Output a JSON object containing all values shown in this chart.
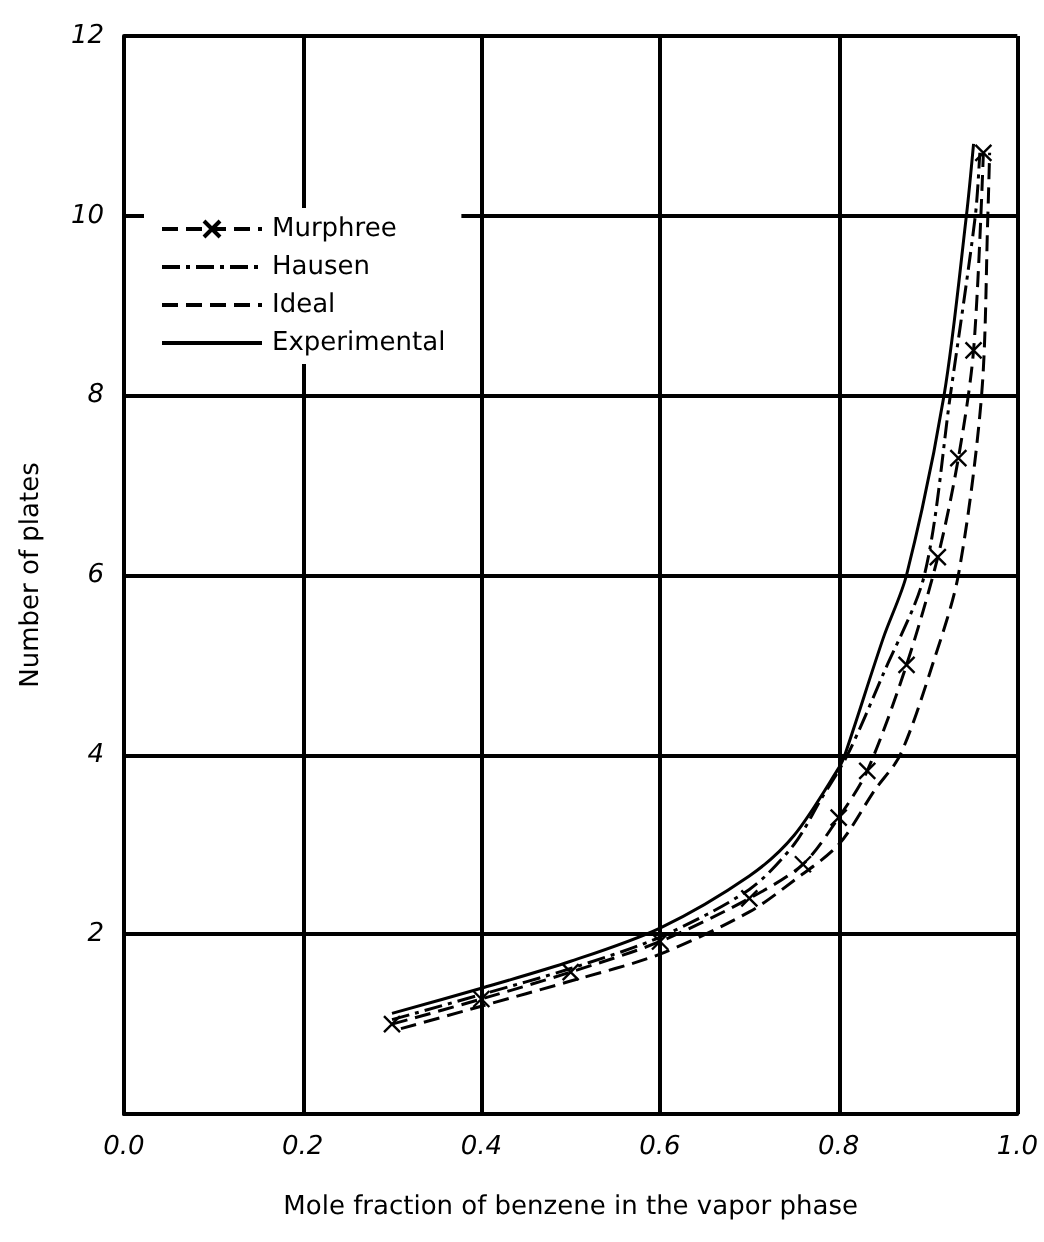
{
  "chart_data": {
    "type": "line",
    "xlabel": "Mole fraction of benzene in the vapor phase",
    "ylabel": "Number of plates",
    "xlim": [
      0,
      1
    ],
    "xticks": [
      {
        "value": 0,
        "label": "0.0"
      },
      {
        "value": 0.2,
        "label": "0.2"
      },
      {
        "value": 0.4,
        "label": "0.4"
      },
      {
        "value": 0.6,
        "label": "0.6"
      },
      {
        "value": 0.8,
        "label": "0.8"
      },
      {
        "value": 1,
        "label": "1.0"
      }
    ],
    "ylim": [
      0,
      12
    ],
    "yticks": [
      2,
      4,
      6,
      8,
      10,
      12
    ],
    "grid": true,
    "legend": "top left",
    "series": [
      {
        "name": "Murphree",
        "color": "#000000",
        "line_style": "dashed",
        "marker": "cross",
        "x": [
          0.3,
          0.4,
          0.5,
          0.6,
          0.7,
          0.76,
          0.8,
          0.832,
          0.876,
          0.911,
          0.934,
          0.951,
          0.962
        ],
        "values": [
          1.0,
          1.28,
          1.58,
          1.92,
          2.4,
          2.78,
          3.3,
          3.82,
          5.0,
          6.2,
          7.3,
          8.5,
          10.7
        ]
      },
      {
        "name": "Hausen",
        "color": "#000000",
        "line_style": "dashdot",
        "marker": "none",
        "x": [
          0.3,
          0.4,
          0.5,
          0.6,
          0.7,
          0.75,
          0.78,
          0.81,
          0.85,
          0.896,
          0.925,
          0.953,
          0.958
        ],
        "values": [
          1.05,
          1.33,
          1.62,
          1.97,
          2.5,
          3.0,
          3.5,
          4.0,
          4.9,
          6.0,
          8.0,
          10.0,
          10.7
        ]
      },
      {
        "name": "Ideal",
        "color": "#000000",
        "line_style": "dashed",
        "marker": "none",
        "x": [
          0.31,
          0.4,
          0.5,
          0.6,
          0.7,
          0.75,
          0.8,
          0.84,
          0.869,
          0.905,
          0.934,
          0.96,
          0.967,
          0.969
        ],
        "values": [
          0.95,
          1.2,
          1.48,
          1.78,
          2.25,
          2.6,
          3.0,
          3.6,
          4.0,
          5.0,
          6.0,
          8.0,
          10.0,
          10.7
        ]
      },
      {
        "name": "Experimental",
        "color": "#000000",
        "line_style": "solid",
        "marker": "none",
        "x": [
          0.3,
          0.4,
          0.5,
          0.6,
          0.7,
          0.75,
          0.8,
          0.807,
          0.85,
          0.876,
          0.918,
          0.943,
          0.951
        ],
        "values": [
          1.12,
          1.4,
          1.7,
          2.07,
          2.65,
          3.1,
          3.85,
          4.0,
          5.3,
          6.0,
          8.0,
          10.0,
          10.8
        ]
      }
    ]
  }
}
